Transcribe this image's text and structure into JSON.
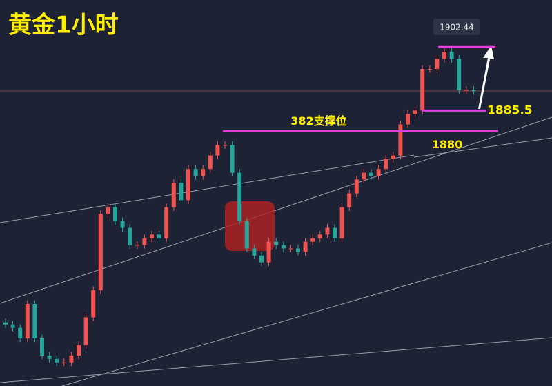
{
  "chart_data": {
    "type": "candlestick",
    "title": "黄金1小时",
    "ylim": [
      1812,
      1915
    ],
    "up_color": "#ef5350",
    "down_color": "#26a69a",
    "open": [
      1829.0,
      1828.4,
      1827.5,
      1824.7,
      1833.9,
      1824.7,
      1820.1,
      1819.2,
      1818.3,
      1818.3,
      1820.1,
      1822.9,
      1830.3,
      1837.6,
      1857.9,
      1859.7,
      1856.0,
      1854.2,
      1849.6,
      1849.6,
      1851.4,
      1852.4,
      1851.4,
      1859.7,
      1866.2,
      1861.6,
      1869.9,
      1868.0,
      1869.9,
      1873.5,
      1876.3,
      1876.3,
      1868.9,
      1856.0,
      1848.7,
      1846.8,
      1845.0,
      1850.5,
      1849.6,
      1848.7,
      1848.7,
      1847.8,
      1850.5,
      1851.4,
      1852.4,
      1854.2,
      1851.4,
      1859.7,
      1863.4,
      1867.1,
      1868.9,
      1868.0,
      1869.9,
      1872.6,
      1873.5,
      1881.8,
      1884.6,
      1885.5,
      1896.6,
      1896.6,
      1899.3,
      1901.2,
      1899.3,
      1891.0,
      1891.0
    ],
    "high": [
      1830.0,
      1829.4,
      1828.5,
      1834.9,
      1834.9,
      1825.7,
      1821.1,
      1820.2,
      1819.3,
      1821.1,
      1823.9,
      1831.3,
      1838.6,
      1858.9,
      1860.7,
      1860.7,
      1857.0,
      1855.2,
      1850.6,
      1852.4,
      1853.4,
      1853.4,
      1860.7,
      1867.2,
      1867.2,
      1870.9,
      1870.9,
      1870.9,
      1874.5,
      1877.3,
      1877.3,
      1877.3,
      1869.9,
      1857.0,
      1849.7,
      1847.8,
      1851.5,
      1851.5,
      1850.6,
      1849.7,
      1849.7,
      1851.5,
      1852.4,
      1853.4,
      1855.2,
      1855.2,
      1860.7,
      1864.4,
      1868.1,
      1869.9,
      1869.9,
      1870.9,
      1873.6,
      1874.5,
      1882.8,
      1885.6,
      1886.5,
      1897.6,
      1897.6,
      1900.3,
      1902.2,
      1902.2,
      1900.3,
      1892.0,
      1892.0
    ],
    "low": [
      1827.4,
      1826.5,
      1823.7,
      1823.7,
      1823.7,
      1819.1,
      1818.2,
      1817.3,
      1817.3,
      1817.3,
      1819.1,
      1821.9,
      1829.3,
      1836.6,
      1856.9,
      1855.0,
      1853.2,
      1848.6,
      1848.6,
      1848.6,
      1850.4,
      1850.4,
      1850.4,
      1858.7,
      1860.6,
      1860.6,
      1867.0,
      1867.0,
      1868.9,
      1872.5,
      1875.3,
      1867.9,
      1855.0,
      1847.7,
      1845.8,
      1844.0,
      1844.0,
      1848.6,
      1847.7,
      1847.7,
      1846.8,
      1846.8,
      1849.5,
      1850.4,
      1851.4,
      1850.4,
      1850.4,
      1858.7,
      1862.4,
      1866.1,
      1867.0,
      1867.0,
      1868.9,
      1871.6,
      1872.5,
      1880.8,
      1883.6,
      1884.5,
      1895.6,
      1895.6,
      1898.3,
      1898.3,
      1890.0,
      1890.0,
      1889.7
    ],
    "close": [
      1828.4,
      1827.5,
      1824.7,
      1833.9,
      1824.7,
      1820.1,
      1819.2,
      1818.3,
      1818.3,
      1820.1,
      1822.9,
      1830.3,
      1837.6,
      1857.9,
      1859.7,
      1856.0,
      1854.2,
      1849.6,
      1849.6,
      1851.4,
      1852.4,
      1851.4,
      1859.7,
      1866.2,
      1861.6,
      1869.9,
      1868.0,
      1869.9,
      1873.5,
      1876.3,
      1876.3,
      1868.9,
      1856.0,
      1848.7,
      1846.8,
      1845.0,
      1850.5,
      1849.6,
      1848.7,
      1848.7,
      1847.8,
      1850.5,
      1851.4,
      1852.4,
      1854.2,
      1851.4,
      1859.7,
      1863.4,
      1867.1,
      1868.9,
      1868.0,
      1869.9,
      1872.6,
      1873.5,
      1881.8,
      1884.6,
      1885.5,
      1896.6,
      1896.6,
      1899.3,
      1901.2,
      1899.3,
      1891.0,
      1891.0,
      1890.7
    ],
    "level_color": "#e040e0",
    "support_label": "382支撑位",
    "support": 1880,
    "target": 1885.5,
    "peak": 1902.44
  }
}
